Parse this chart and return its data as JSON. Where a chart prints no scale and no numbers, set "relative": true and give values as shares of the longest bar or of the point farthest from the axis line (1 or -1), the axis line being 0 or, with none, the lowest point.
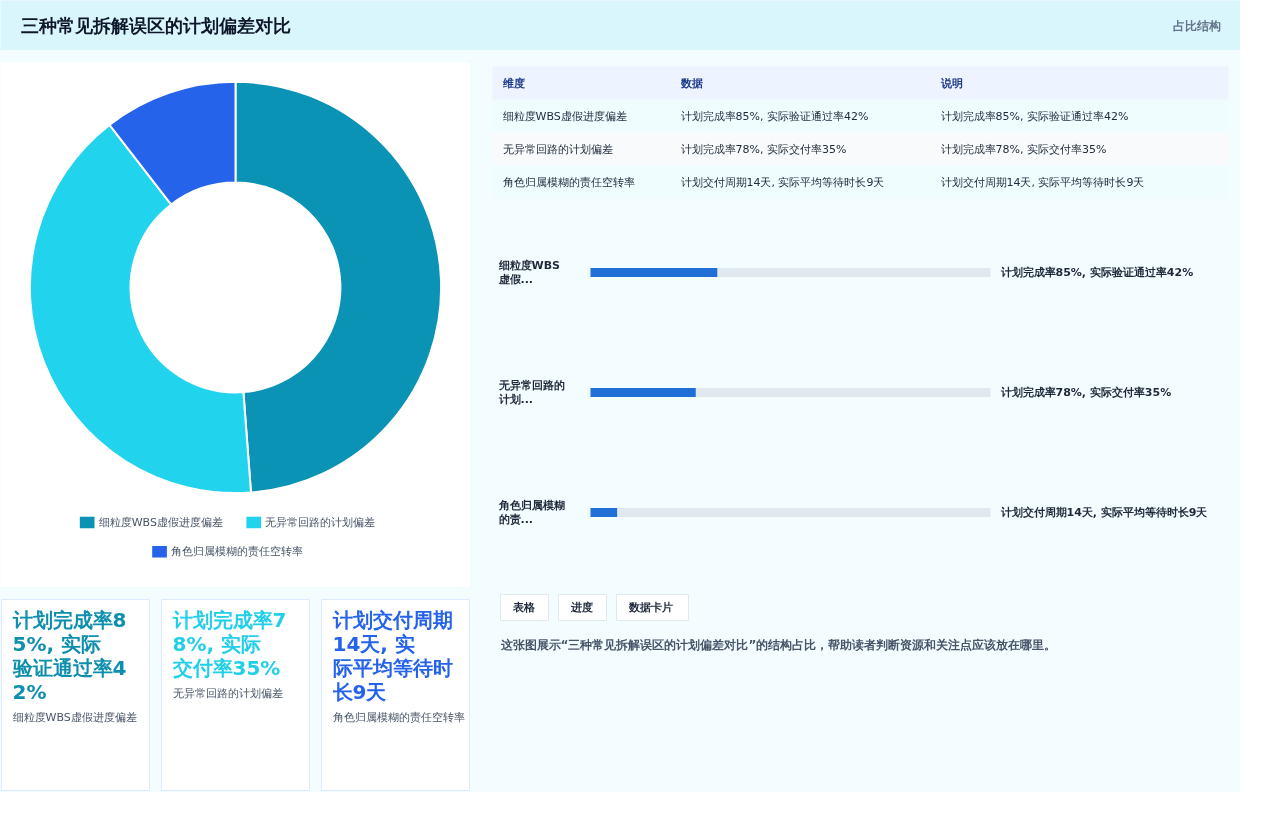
{
  "chart_data": [
    {
      "type": "other",
      "title": "三种常见拆解误区的计划偏差对比",
      "subtitle": "占比结构"
    },
    {
      "type": "donut",
      "categories": [
        "细粒度WBS虚假进度偏差",
        "无异常回路的计划偏差",
        "角色归属模糊的责任空转率"
      ],
      "values": [
        48.8,
        40.7,
        10.5
      ],
      "colors": [
        "#0a93b4",
        "#22d3ee",
        "#2563eb"
      ],
      "legend": "bottom"
    },
    {
      "type": "other",
      "annotations": [
        "维度",
        "数据",
        "说明",
        "细粒度WBS虚假进度偏差",
        "计划完成率85%, 实际验证通过率42%",
        "计划完成率85%, 实际验证通过率42%",
        "无异常回路的计划偏差",
        "计划完成率78%, 实际交付率35%",
        "计划完成率78%, 实际交付率35%",
        "角色归属模糊的责任空转率",
        "计划交付周期14天, 实际平均等待时长9天",
        "计划交付周期14天, 实际平均等待时长9天"
      ]
    },
    {
      "type": "bar",
      "orientation": "horizontal",
      "relative": true,
      "categories": [
        "细粒度WBS虚假...",
        "无异常回路的计划...",
        "角色归属模糊的责..."
      ],
      "values": [
        1,
        0.83,
        0.21
      ],
      "color": "#1f6fd6",
      "annotations": [
        "计划完成率85%, 实际验证通过率42%",
        "计划完成率78%, 实际交付率35%",
        "计划交付周期14天, 实际平均等待时长9天"
      ]
    },
    {
      "type": "other",
      "annotations": [
        "计划完成率85%, 实际验证通过率42%",
        "细粒度WBS虚假进度偏差",
        "计划完成率78%, 实际交付率35%",
        "无异常回路的计划偏差",
        "计划交付周期14天, 实际平均等待时长9天",
        "角色归属模糊的责任空转率"
      ],
      "colors": [
        "#0e8fad",
        "#22cfe8",
        "#2563eb"
      ]
    },
    {
      "type": "other",
      "annotations": [
        "表格",
        "进度",
        "数据卡片",
        "这张图展示“三种常见拆解误区的计划偏差对比”的结构占比，帮助读者判断资源和关注点应该放在哪里。"
      ]
    }
  ]
}
